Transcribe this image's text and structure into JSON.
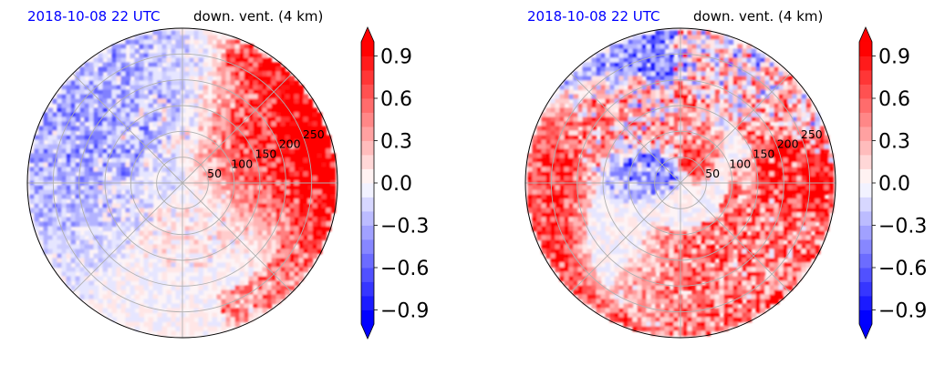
{
  "chart_data": [
    {
      "type": "polar-contourf",
      "title_left": "2018-10-08 22 UTC",
      "title_right": "down. vent. (4 km)",
      "radial_ticks": [
        50,
        100,
        150,
        200,
        250
      ],
      "radial_max": 300,
      "angular_gridlines_deg": [
        0,
        45,
        90,
        135,
        180,
        225,
        270,
        315
      ],
      "grid": true,
      "colorbar": {
        "min": -1.0,
        "max": 1.0,
        "step": 0.1,
        "extend": "both",
        "colormap": "bwr",
        "tick_values": [
          0.9,
          0.6,
          0.3,
          0.0,
          -0.3,
          -0.6,
          -0.9
        ],
        "tick_labels": [
          "0.9",
          "0.6",
          "0.3",
          "0.0",
          "−0.3",
          "−0.6",
          "−0.9"
        ]
      },
      "dominant_features": [
        {
          "sign": "positive",
          "region": "east / north-east",
          "r_range_km": [
            60,
            300
          ],
          "peak": 1.0
        },
        {
          "sign": "negative",
          "region": "scattered north-west to west",
          "r_range_km": [
            30,
            300
          ],
          "peak": -0.9
        }
      ]
    },
    {
      "type": "polar-contourf",
      "title_left": "2018-10-08 22 UTC",
      "title_right": "down. vent. (4 km)",
      "radial_ticks": [
        50,
        100,
        150,
        200,
        250
      ],
      "radial_max": 300,
      "angular_gridlines_deg": [
        0,
        45,
        90,
        135,
        180,
        225,
        270,
        315
      ],
      "grid": true,
      "colorbar": {
        "min": -1.0,
        "max": 1.0,
        "step": 0.1,
        "extend": "both",
        "colormap": "bwr",
        "tick_values": [
          0.9,
          0.6,
          0.3,
          0.0,
          -0.3,
          -0.6,
          -0.9
        ],
        "tick_labels": [
          "0.9",
          "0.6",
          "0.3",
          "0.0",
          "−0.3",
          "−0.6",
          "−0.9"
        ]
      },
      "dominant_features": [
        {
          "sign": "positive",
          "region": "spiral band from north-east through east to south",
          "r_range_km": [
            20,
            300
          ],
          "peak": 1.0
        },
        {
          "sign": "negative",
          "region": "west / north-west spiral band",
          "r_range_km": [
            40,
            300
          ],
          "peak": -1.0
        }
      ]
    }
  ],
  "colors": {
    "title_left": "#0000ff",
    "positive_max": "#ff0000",
    "negative_max": "#0000ff",
    "grid": "#b0b0b0",
    "frame": "#000000"
  }
}
